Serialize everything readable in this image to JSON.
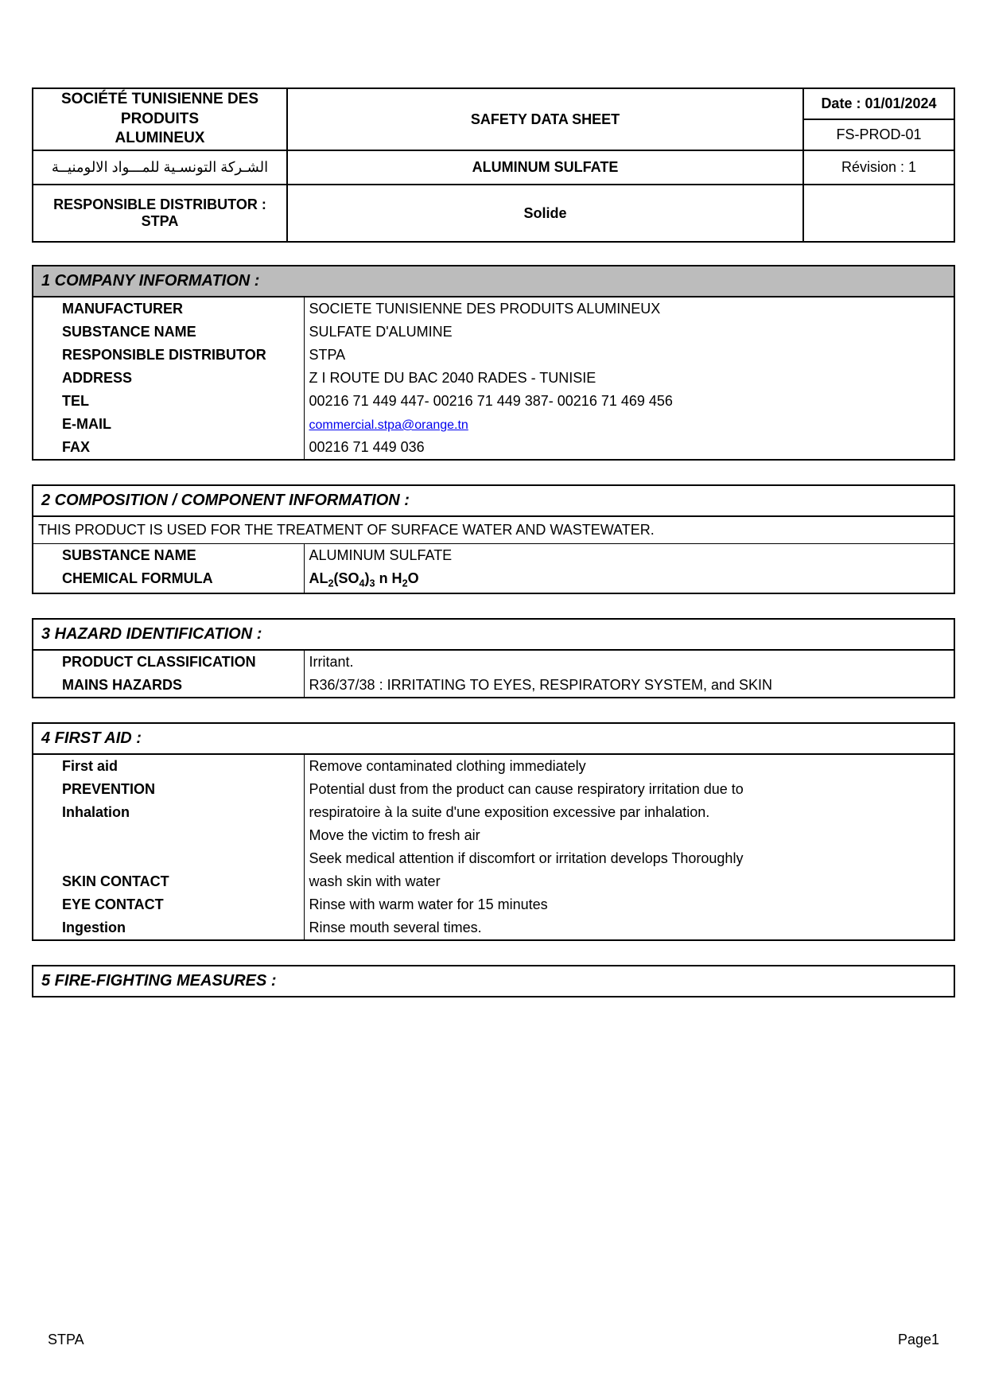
{
  "colors": {
    "page_bg": "#ffffff",
    "text": "#000000",
    "section_title_bg": "#bcbcbc",
    "border": "#000000",
    "link": "#0000ee"
  },
  "header": {
    "company_fr_line1": "SOCIÉTÉ TUNISIENNE DES PRODUITS",
    "company_fr_line2": "ALUMINEUX",
    "company_ar": "الشـركة التونسـية للمـــواد الالومنيــة",
    "doc_title": "SAFETY DATA SHEET",
    "date_label": "Date : 01/01/2024",
    "doc_code": "FS-PROD-01",
    "product": "ALUMINUM SULFATE",
    "revision": "Révision : 1",
    "distributor_label": "RESPONSIBLE DISTRIBUTOR : STPA",
    "state": "Solide"
  },
  "section1": {
    "title": "1  COMPANY INFORMATION :",
    "rows": [
      {
        "label": "MANUFACTURER",
        "value": "SOCIETE TUNISIENNE DES PRODUITS ALUMINEUX"
      },
      {
        "label": "SUBSTANCE NAME",
        "value": "SULFATE D'ALUMINE"
      },
      {
        "label": "RESPONSIBLE DISTRIBUTOR",
        "value": "STPA"
      },
      {
        "label": "ADDRESS",
        "value": "Z I ROUTE DU BAC 2040 RADES - TUNISIE"
      },
      {
        "label": "TEL",
        "value": "00216 71 449 447- 00216 71 449 387-  00216 71 469 456"
      },
      {
        "label": "E-MAIL",
        "value": "commercial.stpa@orange.tn",
        "is_link": true
      },
      {
        "label": "FAX",
        "value": "00216 71 449 036"
      }
    ]
  },
  "section2": {
    "title": "2 COMPOSITION / COMPONENT INFORMATION :",
    "note": "THIS PRODUCT IS USED FOR THE TREATMENT OF SURFACE WATER AND WASTEWATER.",
    "rows": [
      {
        "label": "SUBSTANCE NAME",
        "value": "ALUMINUM SULFATE"
      },
      {
        "label": "CHEMICAL FORMULA",
        "value_html": "AL<sub>2</sub>(SO<sub>4</sub>)<sub>3</sub> n H<sub>2</sub>O"
      }
    ]
  },
  "section3": {
    "title": "3 HAZARD IDENTIFICATION :",
    "rows": [
      {
        "label": "PRODUCT CLASSIFICATION",
        "value": "Irritant."
      },
      {
        "label": "MAINS HAZARDS",
        "value": "R36/37/38 : IRRITATING TO EYES, RESPIRATORY SYSTEM, and SKIN"
      }
    ]
  },
  "section4": {
    "title": "4 FIRST AID :",
    "rows": [
      {
        "label": "First aid",
        "label_bold": true,
        "value": "Remove contaminated clothing immediately"
      },
      {
        "label": "PREVENTION",
        "label_bold": true,
        "value": "Potential dust from the product can cause respiratory irritation due to"
      },
      {
        "label": "Inhalation",
        "label_bold": true,
        "value": "respiratoire  à la suite d'une exposition excessive par inhalation."
      },
      {
        "label": "",
        "label_bold": false,
        "value": "Move the victim to fresh air"
      },
      {
        "label": "",
        "label_bold": false,
        "value": "Seek medical attention if discomfort or irritation develops Thoroughly"
      },
      {
        "label": "SKIN CONTACT",
        "label_bold": true,
        "value": "wash skin with water"
      },
      {
        "label": "EYE CONTACT",
        "label_bold": true,
        "value": "Rinse with warm water for 15 minutes"
      },
      {
        "label": "Ingestion",
        "label_bold": true,
        "value": "Rinse mouth several times."
      }
    ]
  },
  "section5": {
    "title": "5 FIRE-FIGHTING MEASURES :"
  },
  "footer": {
    "left": "STPA",
    "right": "Page1"
  }
}
